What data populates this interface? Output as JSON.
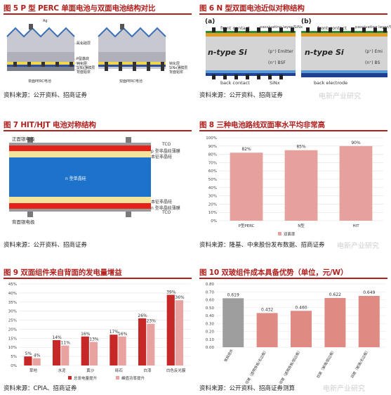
{
  "fig5": {
    "title": "图 5 P 型 PERC 单面电池与双面电池结构对比",
    "source": "资料来源：公开资料、招商证券",
    "top_label": "Ag",
    "layer_labels": [
      "氮化硅层",
      "P型基底",
      "钝化层",
      "SiNx薄膜层",
      "背面铝浆"
    ],
    "caption_left": "单面PERC电池",
    "caption_right": "双面PERC电池"
  },
  "fig6": {
    "title": "图 6 N 型双面电池近似对称结构",
    "source": "资料来源：公开资料、招商证券",
    "panel_a": "(a)",
    "panel_b": "(b)",
    "front_contact": "front contact",
    "passivating": "passivating layer/SiNx",
    "emitter": "(p⁺) Emitter",
    "ntype": "n-type Si",
    "bsf": "(n⁺) BSF",
    "back_contact": "back contact",
    "sinx": "SiNx",
    "back_electrode": "back electrode",
    "emitter_b": "(p⁺) Emi",
    "bsf_b": "(n⁺) BS"
  },
  "fig7": {
    "title": "图 7 HIT/HJT 电池对称结构",
    "source": "资料来源：公开资料、招商证券",
    "front_electrode": "正面银电极",
    "back_electrode": "背面银电极",
    "tco": "TCO",
    "p_layer": "p 型非晶硅薄膜",
    "intrinsic": "本征非晶硅",
    "core": "n 型单晶硅",
    "intrinsic_b": "本征非晶硅",
    "n_layer": "n 型非晶硅薄膜",
    "tco_b": "TCO"
  },
  "fig8": {
    "title": "图 8 三种电池路线双面率水平均非常高",
    "source": "资料来源：隆基、中来股份发布数据、招商证券",
    "legend": "双面率",
    "chart_data": {
      "type": "bar",
      "categories": [
        "P型PERC",
        "N型",
        "HIT"
      ],
      "values": [
        82,
        85,
        90
      ],
      "value_labels": [
        "82%",
        "85%",
        "90%"
      ],
      "yticks": [
        "0%",
        "10%",
        "20%",
        "30%",
        "40%",
        "50%",
        "60%",
        "70%",
        "80%",
        "90%",
        "100%"
      ],
      "ylim": [
        0,
        100
      ],
      "color": "#e7a19d"
    }
  },
  "fig9": {
    "title": "图 9 双面组件来自背面的发电量增益",
    "source": "资料来源：CPIA、招商证券",
    "chart_data": {
      "type": "bar",
      "categories": [
        "草地",
        "水泥",
        "黄沙",
        "砾石",
        "白漆",
        "白色反光膜"
      ],
      "series": [
        {
          "name": "总发电量提升",
          "values": [
            5,
            14,
            16,
            17,
            26,
            39
          ],
          "labels": [
            "5%",
            "14%",
            "16%",
            "17%",
            "26%",
            "39%"
          ],
          "color": "#c62828"
        },
        {
          "name": "峰值功率提升",
          "values": [
            4,
            11,
            13,
            16,
            23,
            36
          ],
          "labels": [
            "4%",
            "11%",
            "13%",
            "16%",
            "23%",
            "36%"
          ],
          "color": "#e8a3a0"
        }
      ],
      "yticks": [
        "0%",
        "5%",
        "10%",
        "15%",
        "20%",
        "25%",
        "30%",
        "35%",
        "40%",
        "45%"
      ],
      "ylim": [
        0,
        45
      ]
    }
  },
  "fig10": {
    "title": "图 10 双玻组件成本具备优势（单位，元/W）",
    "source": "资料来源：公开资料、招商证券测算",
    "chart_data": {
      "type": "bar",
      "categories": [
        "常规组件",
        "双玻（透明背板/无边框）",
        "双玻（透明背板/铝边框）",
        "双玻（玻璃/铝边框）",
        "双玻（玻璃/无边框）"
      ],
      "values": [
        0.619,
        0.432,
        0.46,
        0.622,
        0.649
      ],
      "value_labels": [
        "0.619",
        "0.432",
        "0.460",
        "0.622",
        "0.649"
      ],
      "colors": [
        "#9e9e9e",
        "#e08a84",
        "#e08a84",
        "#e08a84",
        "#e08a84"
      ],
      "yticks": [
        "0.00",
        "0.10",
        "0.20",
        "0.30",
        "0.40",
        "0.50",
        "0.60",
        "0.70",
        "0.80"
      ],
      "ylim": [
        0,
        0.8
      ]
    }
  },
  "watermark": "电新产业研究"
}
